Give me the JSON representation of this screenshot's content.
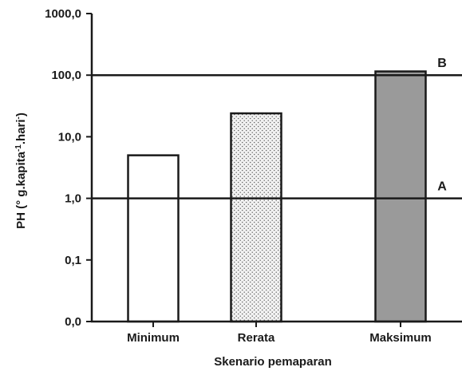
{
  "chart_data": {
    "type": "bar",
    "y_scale": "log",
    "ylim": [
      0.01,
      1000
    ],
    "yticks": [
      0.01,
      0.1,
      1,
      10,
      100,
      1000
    ],
    "ytick_labels": [
      "0,0",
      "0,1",
      "1,0",
      "10,0",
      "100,0",
      "1000,0"
    ],
    "categories": [
      "Minimum",
      "Rerata",
      "Maksimum"
    ],
    "values": [
      5,
      24,
      115
    ],
    "bar_fills": [
      "white",
      "dotted-stipple",
      "gray"
    ],
    "xlabel": "Skenario pemaparan",
    "ylabel": "PH (°g.kapita⁻¹.hari⁻¹)",
    "ylabel_parts": {
      "pre": "PH (",
      "degree": "°",
      "mid1": " g.kapita",
      "sup1": "-1",
      "mid2": ".hari",
      "sup2": "-",
      "post": ")"
    },
    "reference_lines": [
      {
        "label": "A",
        "value": 1
      },
      {
        "label": "B",
        "value": 100
      }
    ],
    "grid": false
  },
  "colors": {
    "axis": "#1a1a1a",
    "bar_outline": "#1a1a1a",
    "bar_gray": "#9a9a9a",
    "bar_white": "#ffffff",
    "stipple_bg": "#f2f2f2",
    "stipple_dot": "#5a5a5a"
  }
}
